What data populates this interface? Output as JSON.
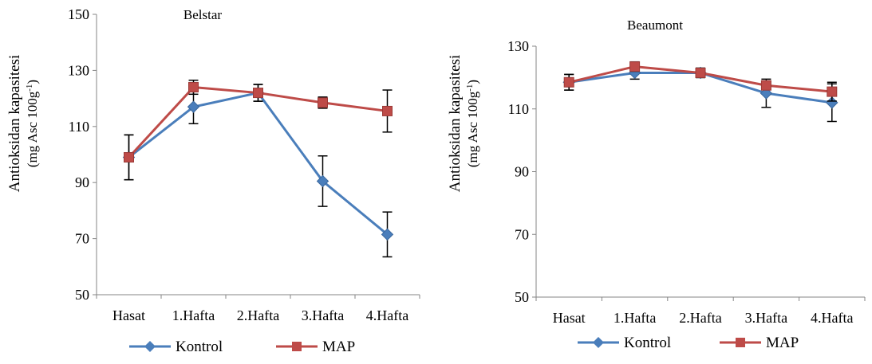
{
  "colors": {
    "kontrol": "#4A7EBB",
    "map": "#BE4B48",
    "axis": "#868686",
    "error_bar": "#000000"
  },
  "chart_data": [
    {
      "type": "line",
      "title": "Belstar",
      "ylabel_line1": "Antioksidan kapasitesi",
      "ylabel_line2_main": "(mg Asc 100g",
      "ylabel_line2_sup": "-1",
      "ylabel_line2_end": ")",
      "categories": [
        "Hasat",
        "1.Hafta",
        "2.Hafta",
        "3.Hafta",
        "4.Hafta"
      ],
      "ylim": [
        50,
        150
      ],
      "yticks": [
        50,
        70,
        90,
        110,
        130,
        150
      ],
      "grid": false,
      "legend_position": "bottom",
      "series": [
        {
          "name": "Kontrol",
          "marker": "diamond",
          "values": [
            99,
            117,
            122,
            90.5,
            71.5
          ],
          "errors": [
            8,
            6,
            3,
            9,
            8
          ]
        },
        {
          "name": "MAP",
          "marker": "square",
          "values": [
            99,
            124,
            122,
            118.5,
            115.5
          ],
          "errors": [
            8,
            2.5,
            3,
            2,
            7.5
          ]
        }
      ]
    },
    {
      "type": "line",
      "title": "Beaumont",
      "ylabel_line1": "Antioksidan kapasitesi",
      "ylabel_line2_main": "(mg Asc 100g",
      "ylabel_line2_sup": "-1",
      "ylabel_line2_end": ")",
      "categories": [
        "Hasat",
        "1.Hafta",
        "2.Hafta",
        "3.Hafta",
        "4.Hafta"
      ],
      "ylim": [
        50,
        130
      ],
      "yticks": [
        50,
        70,
        90,
        110,
        130
      ],
      "grid": false,
      "legend_position": "bottom",
      "series": [
        {
          "name": "Kontrol",
          "marker": "diamond",
          "values": [
            118.5,
            121.5,
            121.5,
            115,
            112
          ],
          "errors": [
            2.5,
            2,
            1.5,
            4.5,
            6
          ]
        },
        {
          "name": "MAP",
          "marker": "square",
          "values": [
            118.5,
            123.5,
            121.5,
            117.5,
            115.5
          ],
          "errors": [
            2.5,
            1.5,
            1.5,
            1,
            3
          ]
        }
      ]
    }
  ]
}
